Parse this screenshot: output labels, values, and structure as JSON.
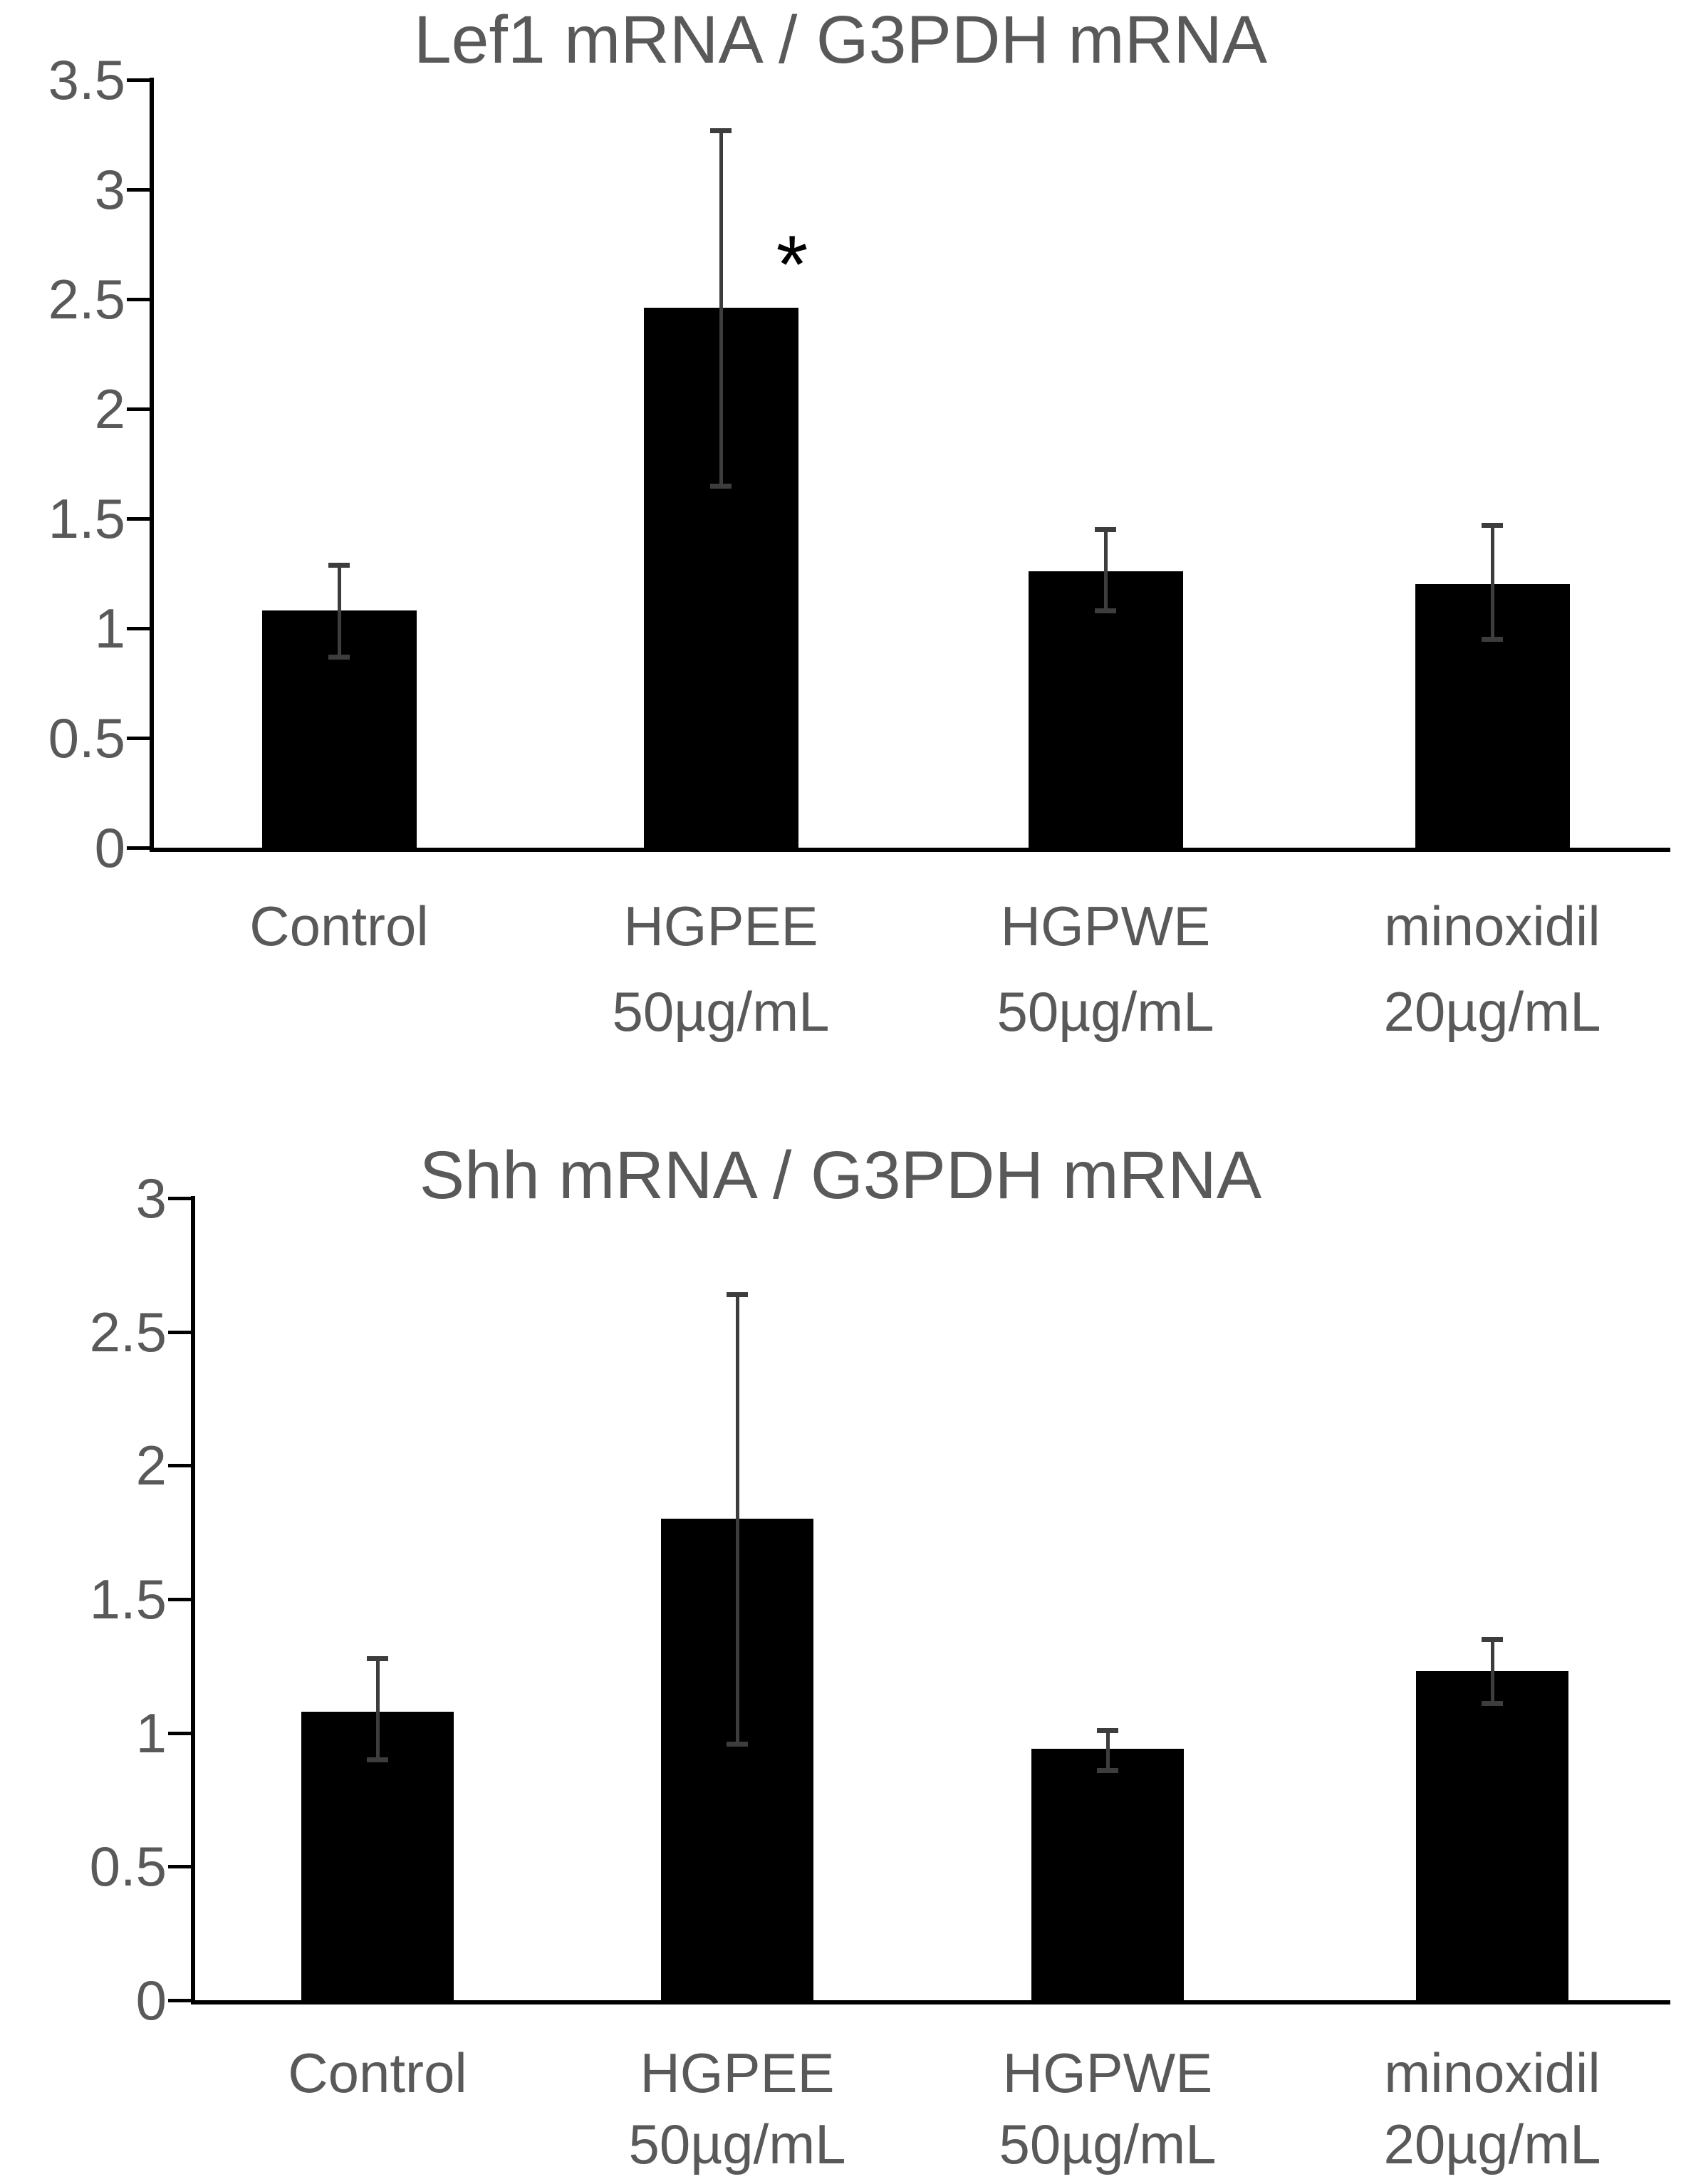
{
  "figure": {
    "background": "#ffffff",
    "text_color": "#595959",
    "bar_color": "#000000",
    "error_bar_color": "#3d3d3d",
    "axis_color": "#000000"
  },
  "chart_data": [
    {
      "type": "bar",
      "title": "Lef1 mRNA / G3PDH mRNA",
      "categories": [
        "Control",
        "HGPEE 50µg/mL",
        "HGPWE 50µg/mL",
        "minoxidil 20µg/mL"
      ],
      "category_lines": [
        [
          "Control"
        ],
        [
          "HGPEE",
          "50µg/mL"
        ],
        [
          "HGPWE",
          "50µg/mL"
        ],
        [
          "minoxidil",
          "20µg/mL"
        ]
      ],
      "values": [
        1.08,
        2.46,
        1.26,
        1.2
      ],
      "error_low": [
        0.87,
        1.65,
        1.08,
        0.95
      ],
      "error_high": [
        1.29,
        3.27,
        1.45,
        1.47
      ],
      "ylim": [
        0,
        3.5
      ],
      "ytick_step": 0.5,
      "ytick_labels": [
        "3.5",
        "3",
        "2.5",
        "2",
        "1.5",
        "1",
        "0.5",
        "0"
      ],
      "grid": false,
      "legend": null,
      "xlabel": "",
      "ylabel": "",
      "annotations": [
        {
          "text": "*",
          "target": "HGPEE 50µg/mL"
        }
      ]
    },
    {
      "type": "bar",
      "title": "Shh mRNA / G3PDH mRNA",
      "categories": [
        "Control",
        "HGPEE 50µg/mL",
        "HGPWE 50µg/mL",
        "minoxidil 20µg/mL"
      ],
      "category_lines": [
        [
          "Control"
        ],
        [
          "HGPEE",
          "50µg/mL"
        ],
        [
          "HGPWE",
          "50µg/mL"
        ],
        [
          "minoxidil",
          "20µg/mL"
        ]
      ],
      "values": [
        1.08,
        1.8,
        0.94,
        1.23
      ],
      "error_low": [
        0.9,
        0.96,
        0.86,
        1.11
      ],
      "error_high": [
        1.28,
        2.64,
        1.01,
        1.35
      ],
      "ylim": [
        0,
        3
      ],
      "ytick_step": 0.5,
      "ytick_labels": [
        "3",
        "2.5",
        "2",
        "1.5",
        "1",
        "0.5",
        "0"
      ],
      "grid": false,
      "legend": null,
      "xlabel": "",
      "ylabel": "",
      "annotations": []
    }
  ]
}
